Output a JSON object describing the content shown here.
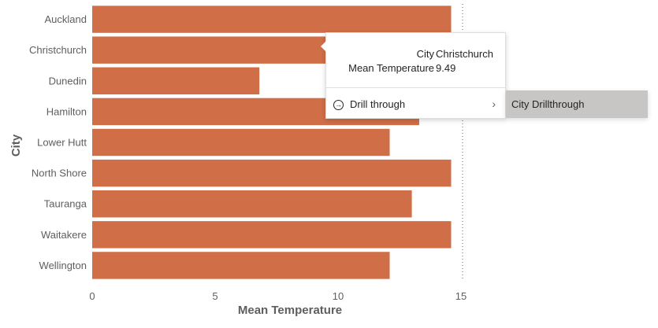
{
  "chart_data": {
    "type": "bar",
    "orientation": "horizontal",
    "categories": [
      "Auckland",
      "Christchurch",
      "Dunedin",
      "Hamilton",
      "Lower Hutt",
      "North Shore",
      "Tauranga",
      "Waitakere",
      "Wellington"
    ],
    "values": [
      14.6,
      9.49,
      6.8,
      13.3,
      12.1,
      14.6,
      13.0,
      14.6,
      12.1
    ],
    "xlabel": "Mean Temperature",
    "ylabel": "City",
    "xlim": [
      0,
      15
    ],
    "xticks": [
      "0",
      "5",
      "10",
      "15"
    ],
    "grid": false,
    "reference_line_value": 15,
    "bar_color": "#d06e47"
  },
  "tooltip": {
    "rows": [
      {
        "key": "City",
        "value": "Christchurch"
      },
      {
        "key": "Mean Temperature",
        "value": "9.49"
      }
    ],
    "drill_label": "Drill through",
    "drill_icon": "arrow-circle-icon",
    "submenu_item": "City Drillthrough"
  }
}
